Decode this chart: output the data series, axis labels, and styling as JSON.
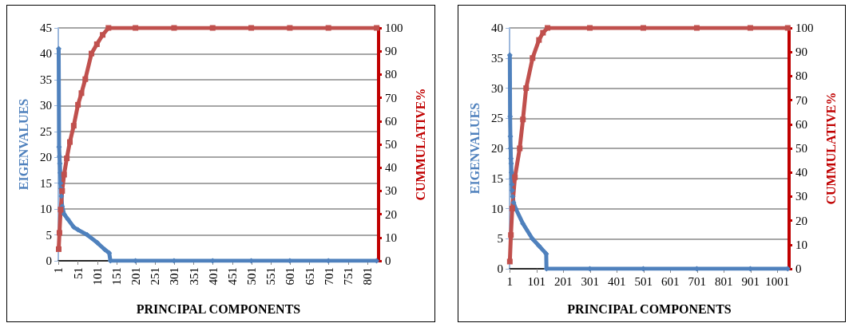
{
  "chart_data": [
    {
      "type": "line",
      "xlabel": "PRINCIPAL COMPONENTS",
      "ylabel": "EIGENVALUES",
      "y2label": "CUMMULATIVE%",
      "xlim": [
        0,
        830
      ],
      "xticks": [
        1,
        51,
        101,
        151,
        201,
        251,
        301,
        351,
        401,
        451,
        501,
        551,
        601,
        651,
        701,
        751,
        801
      ],
      "ylim": [
        0,
        45
      ],
      "yticks": [
        0,
        5,
        10,
        15,
        20,
        25,
        30,
        35,
        40,
        45
      ],
      "y2lim": [
        0,
        100
      ],
      "y2ticks": [
        0,
        10,
        20,
        30,
        40,
        50,
        60,
        70,
        80,
        90,
        100
      ],
      "grid": "y",
      "series": [
        {
          "color": "#4f81bd",
          "marker": "diamond",
          "x": [
            1,
            2,
            3,
            4,
            5,
            6,
            7,
            8,
            10,
            15,
            25,
            40,
            51,
            75,
            101,
            120,
            132,
            135,
            200,
            300,
            400,
            500,
            600,
            700,
            825
          ],
          "values": [
            41,
            22,
            20.2,
            18.8,
            17,
            15,
            14,
            12.5,
            10.5,
            9,
            8,
            6.5,
            6,
            5,
            3.5,
            2.2,
            1.5,
            0,
            0,
            0,
            0,
            0,
            0,
            0,
            0
          ]
        },
        {
          "color": "#c0504d",
          "marker": "square",
          "axis": "y2",
          "x": [
            1,
            3,
            6,
            10,
            15,
            22,
            30,
            40,
            51,
            60,
            70,
            86,
            100,
            115,
            130,
            200,
            300,
            400,
            500,
            600,
            700,
            825
          ],
          "values": [
            5,
            12,
            22,
            30,
            37,
            44,
            51,
            58,
            67,
            72,
            78,
            89,
            93,
            97,
            100,
            100,
            100,
            100,
            100,
            100,
            100,
            100
          ]
        }
      ]
    },
    {
      "type": "line",
      "xlabel": "PRINCIPAL COMPONENTS",
      "ylabel": "EIGENVALUES",
      "y2label": "CUMMULATIVE%",
      "xlim": [
        0,
        1045
      ],
      "xticks": [
        1,
        101,
        201,
        301,
        401,
        501,
        601,
        701,
        801,
        901,
        1001
      ],
      "ylim": [
        0,
        40
      ],
      "yticks": [
        0,
        5,
        10,
        15,
        20,
        25,
        30,
        35,
        40
      ],
      "y2lim": [
        0,
        100
      ],
      "y2ticks": [
        0,
        10,
        20,
        30,
        40,
        50,
        60,
        70,
        80,
        90,
        100
      ],
      "grid": "y",
      "series": [
        {
          "color": "#4f81bd",
          "marker": "diamond",
          "x": [
            1,
            2,
            3,
            4,
            5,
            6,
            7,
            8,
            9,
            10,
            12,
            15,
            23,
            50,
            85,
            110,
            137,
            138,
            300,
            500,
            700,
            900,
            1040
          ],
          "values": [
            35.5,
            25.3,
            22,
            20,
            18.3,
            17.5,
            16,
            15,
            14,
            13,
            12,
            11,
            10,
            7.5,
            5,
            3.8,
            2.5,
            0,
            0,
            0,
            0,
            0,
            0
          ]
        },
        {
          "color": "#c0504d",
          "marker": "square",
          "axis": "y2",
          "x": [
            1,
            5,
            10,
            20,
            38,
            50,
            62,
            86,
            110,
            125,
            142,
            300,
            500,
            700,
            900,
            1040
          ],
          "values": [
            3,
            14,
            25,
            38,
            50,
            62,
            75,
            87.5,
            95,
            98,
            100,
            100,
            100,
            100,
            100,
            100
          ]
        }
      ]
    }
  ]
}
